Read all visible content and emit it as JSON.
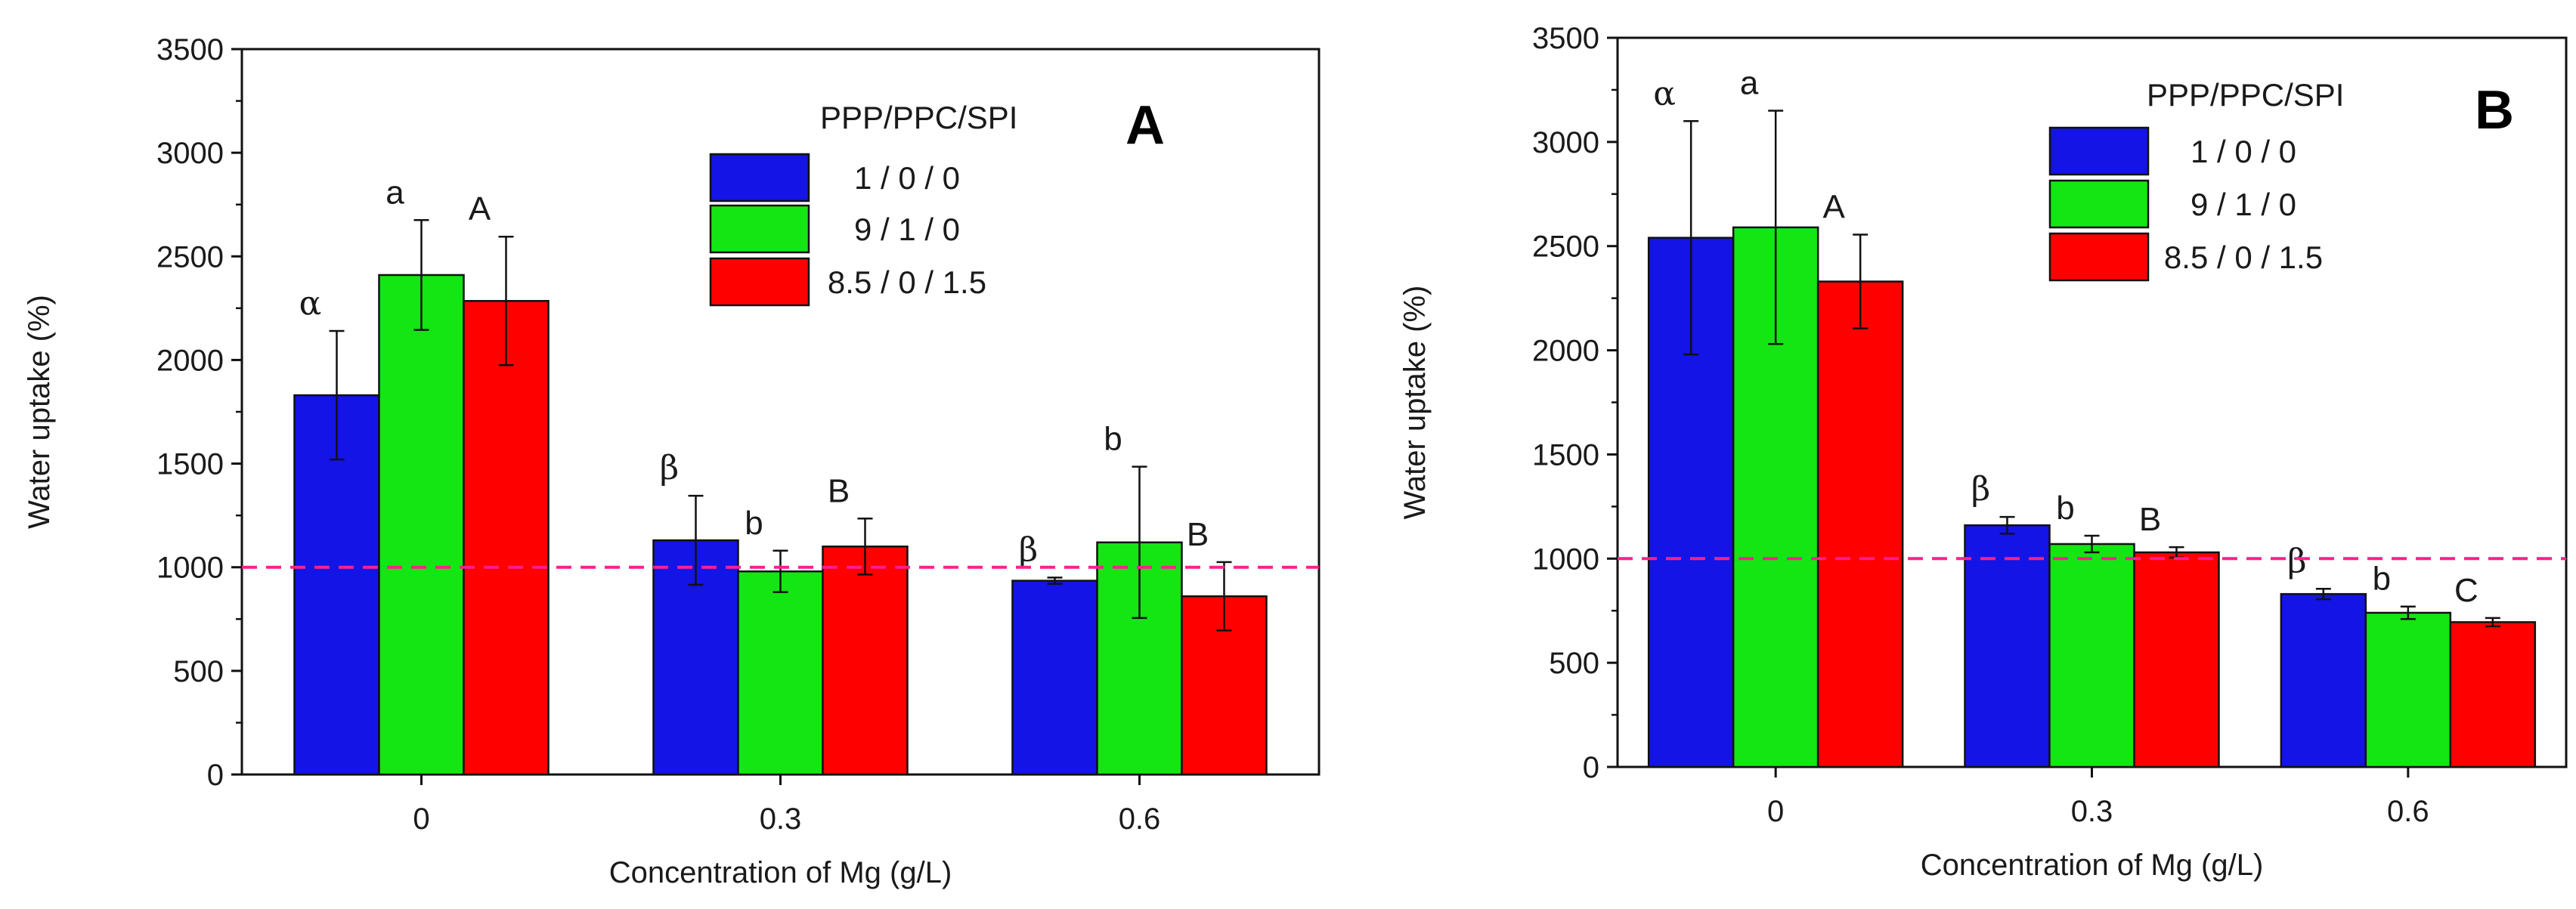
{
  "chart_data": [
    {
      "type": "bar",
      "panel_label": "A",
      "xlabel": "Concentration of Mg (g/L)",
      "ylabel": "Water uptake (%)",
      "ylim": [
        0,
        3500
      ],
      "yticks": [
        "0",
        "500",
        "1000",
        "1500",
        "2000",
        "2500",
        "3000",
        "3500"
      ],
      "categories": [
        "0",
        "0.3",
        "0.6"
      ],
      "legend_title": "PPP/PPC/SPI",
      "reference_line": 1000,
      "series": [
        {
          "name": "1 / 0 / 0",
          "color": "#1414e6",
          "values": [
            1830,
            1130,
            935
          ],
          "errors": [
            310,
            215,
            15
          ],
          "labels": [
            "α",
            "β",
            "β"
          ]
        },
        {
          "name": "9 / 1 / 0",
          "color": "#14e614",
          "values": [
            2410,
            980,
            1120
          ],
          "errors": [
            265,
            100,
            365
          ],
          "labels": [
            "a",
            "b",
            "b"
          ]
        },
        {
          "name": "8.5 / 0 / 1.5",
          "color": "#ff0000",
          "values": [
            2285,
            1100,
            860
          ],
          "errors": [
            310,
            135,
            165
          ],
          "labels": [
            "A",
            "B",
            "B"
          ]
        }
      ]
    },
    {
      "type": "bar",
      "panel_label": "B",
      "xlabel": "Concentration of Mg (g/L)",
      "ylabel": "Water uptake (%)",
      "ylim": [
        0,
        3500
      ],
      "yticks": [
        "0",
        "500",
        "1000",
        "1500",
        "2000",
        "2500",
        "3000",
        "3500"
      ],
      "categories": [
        "0",
        "0.3",
        "0.6"
      ],
      "legend_title": "PPP/PPC/SPI",
      "reference_line": 1000,
      "series": [
        {
          "name": "1 / 0 / 0",
          "color": "#1414e6",
          "values": [
            2540,
            1160,
            830
          ],
          "errors": [
            560,
            40,
            25
          ],
          "labels": [
            "α",
            "β",
            "β"
          ]
        },
        {
          "name": "9 / 1 / 0",
          "color": "#14e614",
          "values": [
            2590,
            1070,
            740
          ],
          "errors": [
            560,
            40,
            30
          ],
          "labels": [
            "a",
            "b",
            "b"
          ]
        },
        {
          "name": "8.5 / 0 / 1.5",
          "color": "#ff0000",
          "values": [
            2330,
            1030,
            695
          ],
          "errors": [
            225,
            25,
            20
          ],
          "labels": [
            "A",
            "B",
            "C"
          ]
        }
      ]
    }
  ]
}
